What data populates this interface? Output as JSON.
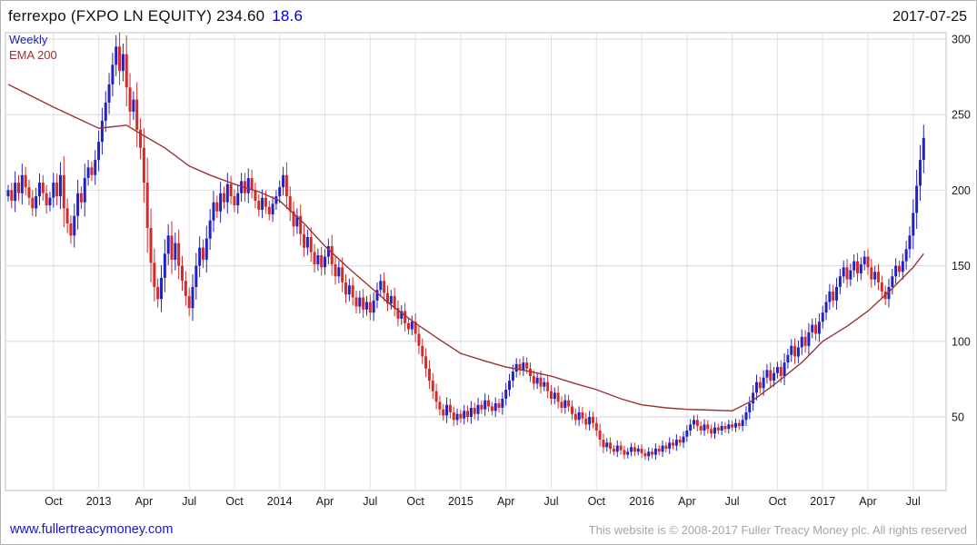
{
  "header": {
    "instrument": "ferrexpo (FXPO LN EQUITY)",
    "price": "234.60",
    "change": "18.6",
    "date": "2017-07-25"
  },
  "legend": {
    "timeframe": "Weekly",
    "overlay": "EMA 200"
  },
  "footer": {
    "website": "www.fullertreacymoney.com",
    "copyright": "This website is © 2008-2017 Fuller Treacy Money plc. All rights reserved"
  },
  "colors": {
    "up": "#2222c0",
    "down": "#d42a2a",
    "ema": "#9b3232",
    "grid_h": "#d7d7de",
    "grid_v": "#e2e2e8",
    "plot_border": "#c2c2ca",
    "axis_text": "#1a1a1a",
    "timeframe_text": "#2020b0",
    "ema_text": "#9b3232",
    "change_text": "#0000cc",
    "link": "#1515cc",
    "copyright_text": "#a5a5ab"
  },
  "chart_data": {
    "type": "candlestick",
    "instrument": "ferrexpo (FXPO LN EQUITY)",
    "timeframe": "Weekly",
    "last_price": 234.6,
    "change": 18.6,
    "date": "2017-07-25",
    "y_axis": {
      "ticks": [
        50,
        100,
        150,
        200,
        250,
        300
      ],
      "max_price": 305,
      "min_price": 20
    },
    "x_axis": {
      "labels": [
        {
          "text": "Oct",
          "week": 13
        },
        {
          "text": "2013",
          "week": 26
        },
        {
          "text": "Apr",
          "week": 39
        },
        {
          "text": "Jul",
          "week": 52
        },
        {
          "text": "Oct",
          "week": 65
        },
        {
          "text": "2014",
          "week": 78
        },
        {
          "text": "Apr",
          "week": 91
        },
        {
          "text": "Jul",
          "week": 104
        },
        {
          "text": "Oct",
          "week": 117
        },
        {
          "text": "2015",
          "week": 130
        },
        {
          "text": "Apr",
          "week": 143
        },
        {
          "text": "Jul",
          "week": 156
        },
        {
          "text": "Oct",
          "week": 169
        },
        {
          "text": "2016",
          "week": 182
        },
        {
          "text": "Apr",
          "week": 195
        },
        {
          "text": "Jul",
          "week": 208
        },
        {
          "text": "Oct",
          "week": 221
        },
        {
          "text": "2017",
          "week": 234
        },
        {
          "text": "Apr",
          "week": 247
        },
        {
          "text": "Jul",
          "week": 260
        }
      ]
    },
    "overlay": {
      "name": "EMA 200",
      "anchor_weeks": [
        0,
        13,
        26,
        30,
        34,
        39,
        45,
        52,
        58,
        65,
        72,
        78,
        85,
        91,
        98,
        104,
        110,
        117,
        124,
        130,
        137,
        143,
        150,
        156,
        163,
        169,
        176,
        182,
        189,
        195,
        202,
        208,
        214,
        221,
        228,
        234,
        241,
        247,
        254,
        260,
        263
      ],
      "anchor_values": [
        270,
        255,
        241,
        242,
        243,
        236,
        228,
        216,
        210,
        204,
        199,
        193,
        178,
        163,
        148,
        136,
        124,
        112,
        101,
        92,
        87,
        83,
        80,
        77,
        72,
        68,
        62,
        58,
        56,
        55,
        54.5,
        54,
        61,
        73,
        86,
        100,
        110,
        120,
        135,
        149,
        158
      ]
    },
    "weekly_closes": [
      200,
      193,
      205,
      198,
      210,
      202,
      195,
      188,
      196,
      205,
      198,
      190,
      195,
      205,
      196,
      210,
      188,
      178,
      170,
      183,
      198,
      192,
      208,
      215,
      210,
      220,
      232,
      246,
      258,
      270,
      283,
      295,
      279,
      290,
      268,
      252,
      260,
      240,
      228,
      205,
      175,
      152,
      136,
      128,
      142,
      158,
      170,
      154,
      165,
      150,
      140,
      130,
      122,
      136,
      150,
      162,
      154,
      168,
      180,
      192,
      186,
      198,
      192,
      204,
      196,
      190,
      198,
      206,
      198,
      208,
      200,
      193,
      187,
      195,
      189,
      184,
      191,
      196,
      202,
      210,
      196,
      186,
      176,
      183,
      171,
      162,
      169,
      159,
      151,
      157,
      149,
      156,
      163,
      151,
      143,
      149,
      139,
      131,
      137,
      129,
      123,
      129,
      121,
      126,
      119,
      127,
      134,
      140,
      132,
      125,
      130,
      122,
      115,
      120,
      112,
      108,
      113,
      105,
      97,
      90,
      82,
      74,
      67,
      60,
      55,
      51,
      58,
      53,
      48,
      52,
      49,
      54,
      50,
      56,
      52,
      58,
      55,
      61,
      57,
      54,
      59,
      56,
      62,
      68,
      74,
      80,
      85,
      81,
      86,
      82,
      77,
      72,
      76,
      70,
      73,
      67,
      62,
      66,
      60,
      56,
      61,
      57,
      52,
      48,
      53,
      49,
      45,
      50,
      46,
      41,
      35,
      30,
      33,
      29,
      27,
      31,
      28,
      25,
      27,
      30,
      27,
      29,
      26,
      24,
      27,
      25,
      29,
      27,
      31,
      29,
      33,
      31,
      35,
      33,
      37,
      41,
      45,
      48,
      44,
      41,
      45,
      42,
      39,
      43,
      41,
      44,
      42,
      45,
      43,
      46,
      44,
      48,
      53,
      59,
      66,
      73,
      69,
      76,
      81,
      74,
      79,
      83,
      77,
      86,
      91,
      97,
      90,
      96,
      103,
      97,
      106,
      111,
      105,
      113,
      119,
      126,
      133,
      127,
      136,
      143,
      149,
      141,
      147,
      153,
      145,
      151,
      156,
      149,
      141,
      146,
      139,
      133,
      128,
      136,
      143,
      150,
      146,
      153,
      161,
      170,
      185,
      203,
      220,
      234.6
    ]
  }
}
